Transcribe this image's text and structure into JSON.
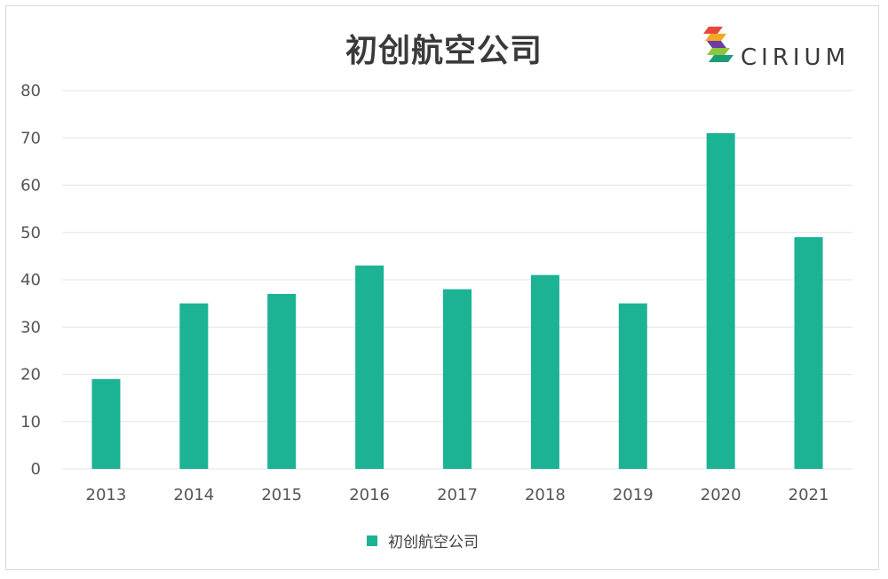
{
  "logo": {
    "text": "CIRIUM",
    "colors": [
      "#e8473c",
      "#f5a623",
      "#8dc63f",
      "#1b9e77",
      "#6b3fa0"
    ]
  },
  "chart_data": {
    "type": "bar",
    "title": "初创航空公司",
    "categories": [
      "2013",
      "2014",
      "2015",
      "2016",
      "2017",
      "2018",
      "2019",
      "2020",
      "2021"
    ],
    "series": [
      {
        "name": "初创航空公司",
        "values": [
          19,
          35,
          37,
          43,
          38,
          41,
          35,
          71,
          49
        ],
        "color": "#1bb394"
      }
    ],
    "y_ticks": [
      "0",
      "10",
      "20",
      "30",
      "40",
      "50",
      "60",
      "70",
      "80"
    ],
    "ylim": [
      0,
      80
    ],
    "xlabel": "",
    "ylabel": "",
    "grid": true,
    "legend_position": "bottom"
  }
}
